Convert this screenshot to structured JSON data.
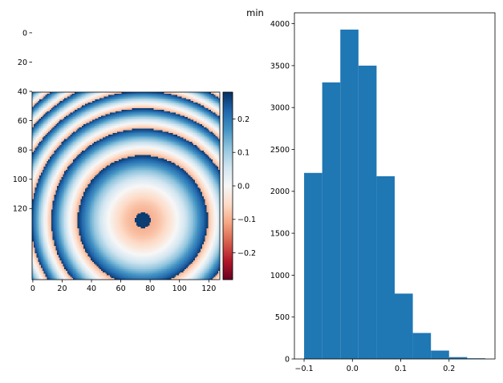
{
  "chart_data": [
    {
      "type": "heatmap",
      "description": "phase-like concentric ring image, 128x128",
      "image_size": [
        128,
        128
      ],
      "center": [
        75,
        87
      ],
      "xlim": [
        0,
        127
      ],
      "ylim": [
        127,
        0
      ],
      "x_ticks": [
        0,
        20,
        40,
        60,
        80,
        100,
        120
      ],
      "y_ticks": [
        0,
        20,
        40,
        60,
        80,
        100,
        120
      ],
      "colormap": "RdBu",
      "colorbar": {
        "range": [
          -0.28,
          0.28
        ],
        "ticks": [
          0.2,
          0.1,
          0.0,
          -0.1,
          -0.2
        ],
        "tick_labels": [
          "0.2",
          "0.1",
          "0.0",
          "−0.1",
          "−0.2"
        ]
      }
    },
    {
      "type": "bar",
      "subtype": "histogram",
      "title": "min",
      "bin_edges": [
        -0.1,
        -0.0625,
        -0.025,
        0.0125,
        0.05,
        0.0875,
        0.125,
        0.1625,
        0.2,
        0.2375,
        0.275
      ],
      "values": [
        2220,
        3300,
        3930,
        3500,
        2180,
        780,
        310,
        100,
        22,
        8
      ],
      "xlim": [
        -0.12,
        0.295
      ],
      "ylim": [
        0,
        4130
      ],
      "x_ticks": [
        -0.1,
        0.0,
        0.1,
        0.2
      ],
      "x_tick_labels": [
        "−0.1",
        "0.0",
        "0.1",
        "0.2"
      ],
      "y_ticks": [
        0,
        500,
        1000,
        1500,
        2000,
        2500,
        3000,
        3500,
        4000
      ],
      "color": "#1f77b4"
    }
  ]
}
